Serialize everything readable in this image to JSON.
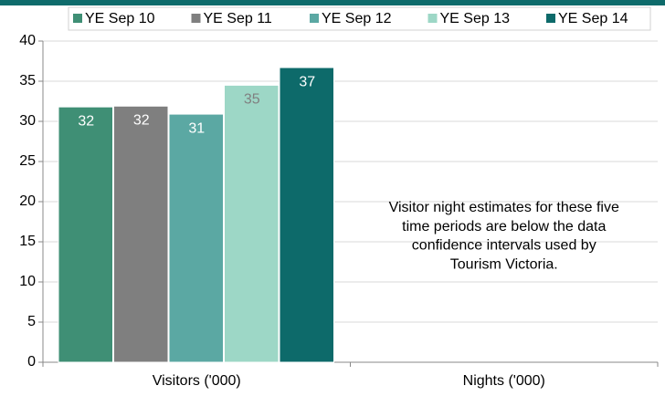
{
  "chart_data": {
    "type": "bar",
    "categories": [
      "Visitors ('000)",
      "Nights ('000)"
    ],
    "series": [
      {
        "name": "YE Sep 10",
        "color": "#3f8f75",
        "values": [
          31.8,
          null
        ],
        "value_labels": [
          "32",
          null
        ]
      },
      {
        "name": "YE Sep 11",
        "color": "#7f7f7f",
        "values": [
          31.9,
          null
        ],
        "value_labels": [
          "32",
          null
        ]
      },
      {
        "name": "YE Sep 12",
        "color": "#5ba8a3",
        "values": [
          30.9,
          null
        ],
        "value_labels": [
          "31",
          null
        ]
      },
      {
        "name": "YE Sep 13",
        "color": "#9dd7c6",
        "values": [
          34.5,
          null
        ],
        "value_labels": [
          "35",
          null
        ]
      },
      {
        "name": "YE Sep 14",
        "color": "#0d6a6a",
        "values": [
          36.7,
          null
        ],
        "value_labels": [
          "37",
          null
        ]
      }
    ],
    "ylim": [
      0,
      40
    ],
    "yticks": [
      0,
      5,
      10,
      15,
      20,
      25,
      30,
      35,
      40
    ],
    "grid": true,
    "legend": "top",
    "annotation_lines": [
      "Visitor night estimates for these five",
      "time periods are below the data",
      "confidence intervals used by",
      "Tourism Victoria."
    ]
  }
}
